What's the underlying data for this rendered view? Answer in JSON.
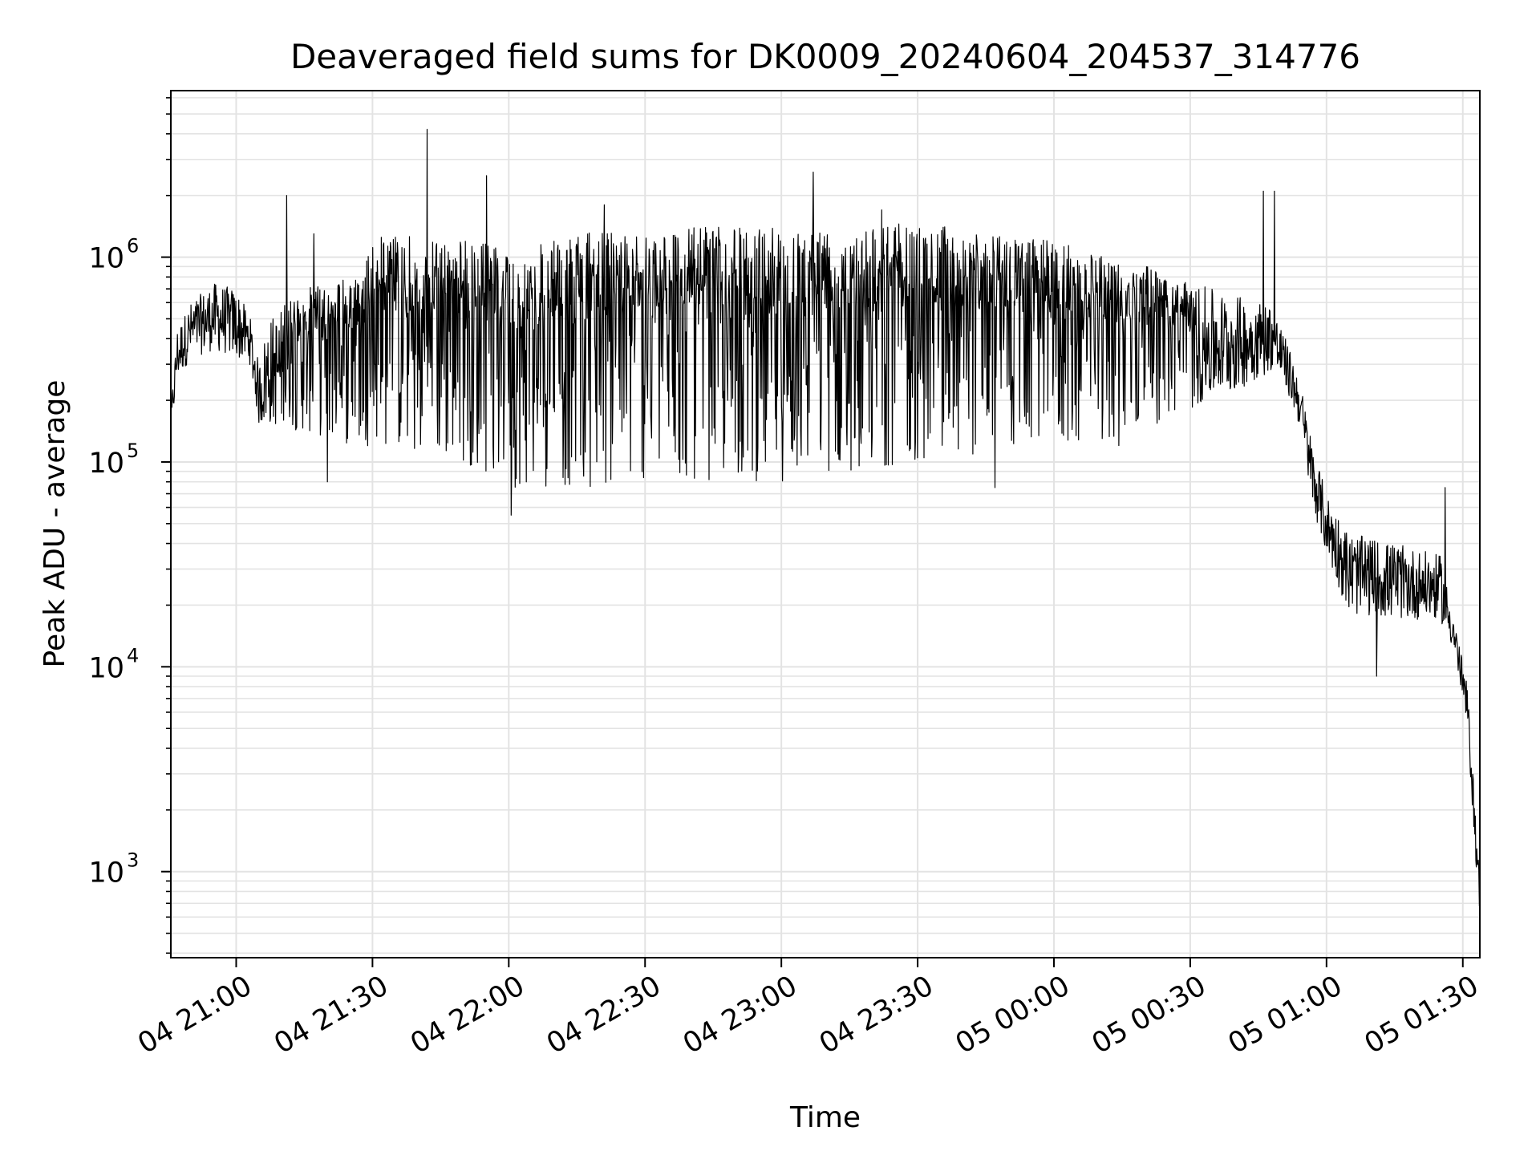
{
  "chart_data": {
    "type": "line",
    "title": "Deaveraged field sums for DK0009_20240604_204537_314776",
    "xlabel": "Time",
    "ylabel": "Peak ADU - average",
    "yscale": "log",
    "ylim": [
      380,
      6500000
    ],
    "xlim": [
      "2024-06-04 20:45:37",
      "2024-06-05 01:33:45"
    ],
    "x_ticks": [
      {
        "time": "2024-06-04 21:00",
        "label": "04 21:00"
      },
      {
        "time": "2024-06-04 21:30",
        "label": "04 21:30"
      },
      {
        "time": "2024-06-04 22:00",
        "label": "04 22:00"
      },
      {
        "time": "2024-06-04 22:30",
        "label": "04 22:30"
      },
      {
        "time": "2024-06-04 23:00",
        "label": "04 23:00"
      },
      {
        "time": "2024-06-04 23:30",
        "label": "04 23:30"
      },
      {
        "time": "2024-06-05 00:00",
        "label": "05 00:00"
      },
      {
        "time": "2024-06-05 00:30",
        "label": "05 00:30"
      },
      {
        "time": "2024-06-05 01:00",
        "label": "05 01:00"
      },
      {
        "time": "2024-06-05 01:30",
        "label": "05 01:30"
      }
    ],
    "y_ticks": [
      {
        "value": 1000,
        "base": "10",
        "exp": "3"
      },
      {
        "value": 10000,
        "base": "10",
        "exp": "4"
      },
      {
        "value": 100000,
        "base": "10",
        "exp": "5"
      },
      {
        "value": 1000000,
        "base": "10",
        "exp": "6"
      }
    ],
    "grid": true,
    "line_color": "#000000",
    "grid_color": "#e3e3e3",
    "series": [
      {
        "envelope": [
          {
            "t": "2024-06-04 20:45:37",
            "low": 130000,
            "high": 180000
          },
          {
            "t": "2024-06-04 20:47:00",
            "low": 250000,
            "high": 450000
          },
          {
            "t": "2024-06-04 20:50:00",
            "low": 320000,
            "high": 600000
          },
          {
            "t": "2024-06-04 20:55:00",
            "low": 350000,
            "high": 750000
          },
          {
            "t": "2024-06-04 21:00:00",
            "low": 320000,
            "high": 700000
          },
          {
            "t": "2024-06-04 21:03:00",
            "low": 300000,
            "high": 520000
          },
          {
            "t": "2024-06-04 21:05:00",
            "low": 150000,
            "high": 300000
          },
          {
            "t": "2024-06-04 21:07:00",
            "low": 150000,
            "high": 500000
          },
          {
            "t": "2024-06-04 21:15:00",
            "low": 140000,
            "high": 700000
          },
          {
            "t": "2024-06-04 21:25:00",
            "low": 120000,
            "high": 800000
          },
          {
            "t": "2024-06-04 21:32:00",
            "low": 120000,
            "high": 1300000
          },
          {
            "t": "2024-06-04 21:40:00",
            "low": 100000,
            "high": 1300000
          },
          {
            "t": "2024-06-04 21:50:00",
            "low": 100000,
            "high": 1250000
          },
          {
            "t": "2024-06-04 22:00:00",
            "low": 75000,
            "high": 1100000
          },
          {
            "t": "2024-06-04 22:10:00",
            "low": 75000,
            "high": 1200000
          },
          {
            "t": "2024-06-04 22:20:00",
            "low": 75000,
            "high": 1350000
          },
          {
            "t": "2024-06-04 22:30:00",
            "low": 80000,
            "high": 1400000
          },
          {
            "t": "2024-06-04 22:45:00",
            "low": 80000,
            "high": 1400000
          },
          {
            "t": "2024-06-04 23:00:00",
            "low": 80000,
            "high": 1400000
          },
          {
            "t": "2024-06-04 23:15:00",
            "low": 90000,
            "high": 1450000
          },
          {
            "t": "2024-06-04 23:30:00",
            "low": 100000,
            "high": 1500000
          },
          {
            "t": "2024-06-04 23:45:00",
            "low": 110000,
            "high": 1300000
          },
          {
            "t": "2024-06-05 00:00:00",
            "low": 120000,
            "high": 1200000
          },
          {
            "t": "2024-06-05 00:15:00",
            "low": 120000,
            "high": 1000000
          },
          {
            "t": "2024-06-05 00:30:00",
            "low": 180000,
            "high": 750000
          },
          {
            "t": "2024-06-05 00:40:00",
            "low": 220000,
            "high": 650000
          },
          {
            "t": "2024-06-05 00:48:00",
            "low": 280000,
            "high": 600000
          },
          {
            "t": "2024-06-05 00:51:00",
            "low": 230000,
            "high": 400000
          },
          {
            "t": "2024-06-05 00:54:00",
            "low": 150000,
            "high": 260000
          },
          {
            "t": "2024-06-05 00:57:00",
            "low": 60000,
            "high": 120000
          },
          {
            "t": "2024-06-05 01:00:00",
            "low": 35000,
            "high": 70000
          },
          {
            "t": "2024-06-05 01:05:00",
            "low": 18000,
            "high": 45000
          },
          {
            "t": "2024-06-05 01:15:00",
            "low": 17000,
            "high": 40000
          },
          {
            "t": "2024-06-05 01:25:00",
            "low": 17000,
            "high": 35000
          },
          {
            "t": "2024-06-05 01:28:00",
            "low": 12000,
            "high": 18000
          },
          {
            "t": "2024-06-05 01:31:00",
            "low": 5000,
            "high": 8000
          },
          {
            "t": "2024-06-05 01:32:30",
            "low": 1500,
            "high": 2500
          },
          {
            "t": "2024-06-05 01:33:45",
            "low": 550,
            "high": 900
          }
        ],
        "spikes": [
          {
            "t": "2024-06-04 21:11:00",
            "value": 2000000
          },
          {
            "t": "2024-06-04 21:17:00",
            "value": 1300000
          },
          {
            "t": "2024-06-04 21:20:00",
            "value": 80000
          },
          {
            "t": "2024-06-04 21:42:00",
            "value": 4200000
          },
          {
            "t": "2024-06-04 21:55:00",
            "value": 2500000
          },
          {
            "t": "2024-06-04 22:00:30",
            "value": 55000
          },
          {
            "t": "2024-06-04 22:21:00",
            "value": 1800000
          },
          {
            "t": "2024-06-04 23:07:00",
            "value": 2600000
          },
          {
            "t": "2024-06-04 23:22:00",
            "value": 1700000
          },
          {
            "t": "2024-06-04 23:47:00",
            "value": 75000
          },
          {
            "t": "2024-06-05 00:46:00",
            "value": 2100000
          },
          {
            "t": "2024-06-05 00:48:30",
            "value": 2100000
          },
          {
            "t": "2024-06-05 01:11:00",
            "value": 9000
          },
          {
            "t": "2024-06-05 01:26:00",
            "value": 75000
          }
        ]
      }
    ]
  }
}
